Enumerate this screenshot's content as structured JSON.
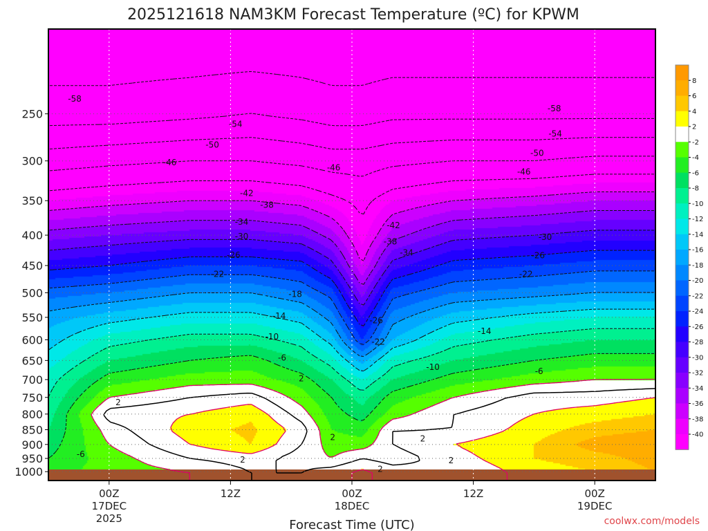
{
  "chart_data": {
    "type": "heatmap",
    "title": "2025121618 NAM3KM Forecast Temperature (ºC) for KPWM",
    "xlabel": "Forecast Time (UTC)",
    "ylabel": "",
    "pressure_levels": [
      250,
      300,
      350,
      400,
      450,
      500,
      550,
      600,
      650,
      700,
      750,
      800,
      850,
      900,
      950,
      1000
    ],
    "x_hours": [
      -6,
      54
    ],
    "x_ticks": [
      {
        "hour": 0,
        "lines": [
          "00Z",
          "17DEC",
          "2025"
        ]
      },
      {
        "hour": 12,
        "lines": [
          "12Z"
        ]
      },
      {
        "hour": 24,
        "lines": [
          "00Z",
          "18DEC"
        ]
      },
      {
        "hour": 36,
        "lines": [
          "12Z"
        ]
      },
      {
        "hour": 48,
        "lines": [
          "00Z",
          "19DEC"
        ]
      }
    ],
    "pressure_range": [
      1035,
      180
    ],
    "grid": true,
    "colorbar": {
      "position": "right",
      "labels": [
        "8",
        "6",
        "4",
        "2",
        "-2",
        "-4",
        "-6",
        "-8",
        "-10",
        "-12",
        "-14",
        "-16",
        "-18",
        "-20",
        "-22",
        "-24",
        "-26",
        "-28",
        "-30",
        "-32",
        "-34",
        "-36",
        "-38",
        "-40"
      ]
    },
    "profiles": [
      {
        "hour": -6,
        "temps": [
          [
            1000,
            -5
          ],
          [
            950,
            -6
          ],
          [
            900,
            -7
          ],
          [
            850,
            -8
          ],
          [
            800,
            -9
          ],
          [
            750,
            -10
          ],
          [
            700,
            -11
          ],
          [
            650,
            -13
          ],
          [
            600,
            -15
          ],
          [
            550,
            -17
          ],
          [
            500,
            -21
          ],
          [
            450,
            -27
          ],
          [
            400,
            -33
          ],
          [
            350,
            -40
          ],
          [
            300,
            -48
          ],
          [
            250,
            -56
          ],
          [
            180,
            -62
          ]
        ]
      },
      {
        "hour": 0,
        "temps": [
          [
            1000,
            -3
          ],
          [
            950,
            -3
          ],
          [
            900,
            -2
          ],
          [
            850,
            -1
          ],
          [
            800,
            1
          ],
          [
            750,
            -2
          ],
          [
            700,
            -5
          ],
          [
            650,
            -8
          ],
          [
            600,
            -11
          ],
          [
            550,
            -15
          ],
          [
            500,
            -20
          ],
          [
            450,
            -26
          ],
          [
            400,
            -32
          ],
          [
            350,
            -39
          ],
          [
            300,
            -47
          ],
          [
            250,
            -56
          ],
          [
            180,
            -62
          ]
        ]
      },
      {
        "hour": 8,
        "temps": [
          [
            1000,
            -2
          ],
          [
            950,
            0
          ],
          [
            900,
            2
          ],
          [
            850,
            3
          ],
          [
            800,
            2
          ],
          [
            750,
            0
          ],
          [
            700,
            -3
          ],
          [
            650,
            -6
          ],
          [
            600,
            -9
          ],
          [
            550,
            -13
          ],
          [
            500,
            -18
          ],
          [
            450,
            -24
          ],
          [
            400,
            -31
          ],
          [
            350,
            -38
          ],
          [
            300,
            -46
          ],
          [
            250,
            -55
          ],
          [
            180,
            -62
          ]
        ]
      },
      {
        "hour": 14,
        "temps": [
          [
            1000,
            0
          ],
          [
            950,
            1
          ],
          [
            900,
            4
          ],
          [
            850,
            4.5
          ],
          [
            800,
            3.5
          ],
          [
            750,
            1
          ],
          [
            700,
            -3
          ],
          [
            650,
            -5
          ],
          [
            600,
            -9
          ],
          [
            550,
            -13
          ],
          [
            500,
            -18
          ],
          [
            450,
            -24
          ],
          [
            400,
            -31
          ],
          [
            350,
            -38
          ],
          [
            300,
            -46
          ],
          [
            250,
            -54
          ],
          [
            180,
            -62
          ]
        ]
      },
      {
        "hour": 19,
        "temps": [
          [
            1000,
            0
          ],
          [
            950,
            -1
          ],
          [
            900,
            0
          ],
          [
            850,
            1
          ],
          [
            800,
            -1
          ],
          [
            750,
            -3
          ],
          [
            700,
            -5
          ],
          [
            650,
            -8
          ],
          [
            600,
            -11
          ],
          [
            550,
            -15
          ],
          [
            500,
            -20
          ],
          [
            450,
            -25
          ],
          [
            400,
            -32
          ],
          [
            350,
            -39
          ],
          [
            300,
            -47
          ],
          [
            250,
            -55
          ],
          [
            180,
            -62
          ]
        ]
      },
      {
        "hour": 22,
        "temps": [
          [
            1000,
            1
          ],
          [
            950,
            -2
          ],
          [
            900,
            -3
          ],
          [
            850,
            -4
          ],
          [
            800,
            -5
          ],
          [
            750,
            -6
          ],
          [
            700,
            -8
          ],
          [
            650,
            -11
          ],
          [
            600,
            -15
          ],
          [
            550,
            -19
          ],
          [
            500,
            -23
          ],
          [
            450,
            -29
          ],
          [
            400,
            -35
          ],
          [
            350,
            -41
          ],
          [
            300,
            -48
          ],
          [
            250,
            -56
          ],
          [
            180,
            -62
          ]
        ]
      },
      {
        "hour": 25,
        "temps": [
          [
            1000,
            2.5
          ],
          [
            950,
            0
          ],
          [
            900,
            -3
          ],
          [
            850,
            -5
          ],
          [
            800,
            -7
          ],
          [
            750,
            -9
          ],
          [
            700,
            -12
          ],
          [
            650,
            -17
          ],
          [
            600,
            -24
          ],
          [
            550,
            -28
          ],
          [
            500,
            -33
          ],
          [
            450,
            -38
          ],
          [
            400,
            -41
          ],
          [
            350,
            -43
          ],
          [
            300,
            -48
          ],
          [
            250,
            -56
          ],
          [
            180,
            -62
          ]
        ]
      },
      {
        "hour": 28,
        "temps": [
          [
            1000,
            1
          ],
          [
            950,
            -1
          ],
          [
            900,
            0
          ],
          [
            850,
            0
          ],
          [
            800,
            -3
          ],
          [
            750,
            -5
          ],
          [
            700,
            -8
          ],
          [
            650,
            -11
          ],
          [
            600,
            -16
          ],
          [
            550,
            -19
          ],
          [
            500,
            -23
          ],
          [
            450,
            -29
          ],
          [
            400,
            -35
          ],
          [
            350,
            -40
          ],
          [
            300,
            -47
          ],
          [
            250,
            -55
          ],
          [
            180,
            -62
          ]
        ]
      },
      {
        "hour": 34,
        "temps": [
          [
            1000,
            0
          ],
          [
            950,
            1
          ],
          [
            900,
            2
          ],
          [
            850,
            0
          ],
          [
            800,
            0
          ],
          [
            750,
            -2
          ],
          [
            700,
            -5
          ],
          [
            650,
            -8
          ],
          [
            600,
            -11
          ],
          [
            550,
            -15
          ],
          [
            500,
            -20
          ],
          [
            450,
            -25
          ],
          [
            400,
            -31
          ],
          [
            350,
            -38
          ],
          [
            300,
            -46
          ],
          [
            250,
            -55
          ],
          [
            180,
            -62
          ]
        ]
      },
      {
        "hour": 42,
        "temps": [
          [
            1000,
            3
          ],
          [
            950,
            4
          ],
          [
            900,
            4
          ],
          [
            850,
            3
          ],
          [
            800,
            2
          ],
          [
            750,
            1
          ],
          [
            700,
            -3
          ],
          [
            650,
            -6
          ],
          [
            600,
            -9
          ],
          [
            550,
            -13
          ],
          [
            500,
            -19
          ],
          [
            450,
            -24
          ],
          [
            400,
            -30
          ],
          [
            350,
            -37
          ],
          [
            300,
            -46
          ],
          [
            250,
            -55
          ],
          [
            180,
            -62
          ]
        ]
      },
      {
        "hour": 48,
        "temps": [
          [
            1000,
            4
          ],
          [
            950,
            5
          ],
          [
            900,
            7
          ],
          [
            850,
            5
          ],
          [
            800,
            3
          ],
          [
            750,
            1
          ],
          [
            700,
            -2
          ],
          [
            650,
            -5
          ],
          [
            600,
            -8
          ],
          [
            550,
            -12
          ],
          [
            500,
            -18
          ],
          [
            450,
            -23
          ],
          [
            400,
            -29
          ],
          [
            350,
            -36
          ],
          [
            300,
            -45
          ],
          [
            250,
            -55
          ],
          [
            180,
            -62
          ]
        ]
      },
      {
        "hour": 54,
        "temps": [
          [
            1000,
            6
          ],
          [
            950,
            7
          ],
          [
            900,
            8
          ],
          [
            850,
            6
          ],
          [
            800,
            4
          ],
          [
            750,
            2
          ],
          [
            700,
            -2
          ],
          [
            650,
            -5
          ],
          [
            600,
            -8
          ],
          [
            550,
            -12
          ],
          [
            500,
            -18
          ],
          [
            450,
            -23
          ],
          [
            400,
            -29
          ],
          [
            350,
            -36
          ],
          [
            300,
            -45
          ],
          [
            250,
            -55
          ],
          [
            180,
            -62
          ]
        ]
      }
    ],
    "contour_labels": [
      {
        "text": "-58",
        "hour": -3.4,
        "p": 236
      },
      {
        "text": "-54",
        "hour": 12.5,
        "p": 260
      },
      {
        "text": "-50",
        "hour": 10.2,
        "p": 282
      },
      {
        "text": "-46",
        "hour": 6.0,
        "p": 302
      },
      {
        "text": "-46",
        "hour": 22.2,
        "p": 308
      },
      {
        "text": "-42",
        "hour": 13.6,
        "p": 340
      },
      {
        "text": "-38",
        "hour": 15.6,
        "p": 356
      },
      {
        "text": "-34",
        "hour": 13.1,
        "p": 380
      },
      {
        "text": "-30",
        "hour": 13.1,
        "p": 402
      },
      {
        "text": "-26",
        "hour": 12.3,
        "p": 432
      },
      {
        "text": "-22",
        "hour": 10.7,
        "p": 465
      },
      {
        "text": "-18",
        "hour": 18.4,
        "p": 503
      },
      {
        "text": "-14",
        "hour": 16.8,
        "p": 547
      },
      {
        "text": "-10",
        "hour": 16.1,
        "p": 593
      },
      {
        "text": "-6",
        "hour": 17.1,
        "p": 643
      },
      {
        "text": "2",
        "hour": 19.0,
        "p": 697
      },
      {
        "text": "2",
        "hour": 0.9,
        "p": 765
      },
      {
        "text": "-6",
        "hour": -2.8,
        "p": 935
      },
      {
        "text": "2",
        "hour": 13.2,
        "p": 955
      },
      {
        "text": "2",
        "hour": 22.1,
        "p": 875
      },
      {
        "text": "2",
        "hour": 26.8,
        "p": 990
      },
      {
        "text": "-42",
        "hour": 28.1,
        "p": 385
      },
      {
        "text": "-38",
        "hour": 27.8,
        "p": 410
      },
      {
        "text": "-34",
        "hour": 29.4,
        "p": 428
      },
      {
        "text": "-26",
        "hour": 26.4,
        "p": 557
      },
      {
        "text": "-22",
        "hour": 26.6,
        "p": 605
      },
      {
        "text": "-10",
        "hour": 32.0,
        "p": 667
      },
      {
        "text": "-14",
        "hour": 37.1,
        "p": 580
      },
      {
        "text": "2",
        "hour": 31.0,
        "p": 880
      },
      {
        "text": "2",
        "hour": 33.8,
        "p": 958
      },
      {
        "text": "-58",
        "hour": 44.0,
        "p": 245
      },
      {
        "text": "-54",
        "hour": 44.1,
        "p": 270
      },
      {
        "text": "-50",
        "hour": 42.3,
        "p": 291
      },
      {
        "text": "-46",
        "hour": 41.0,
        "p": 313
      },
      {
        "text": "-30",
        "hour": 43.1,
        "p": 403
      },
      {
        "text": "-26",
        "hour": 42.4,
        "p": 433
      },
      {
        "text": "-22",
        "hour": 41.2,
        "p": 465
      },
      {
        "text": "-6",
        "hour": 42.5,
        "p": 678
      }
    ]
  },
  "footer": {
    "credit": "coolwx.com/models"
  }
}
